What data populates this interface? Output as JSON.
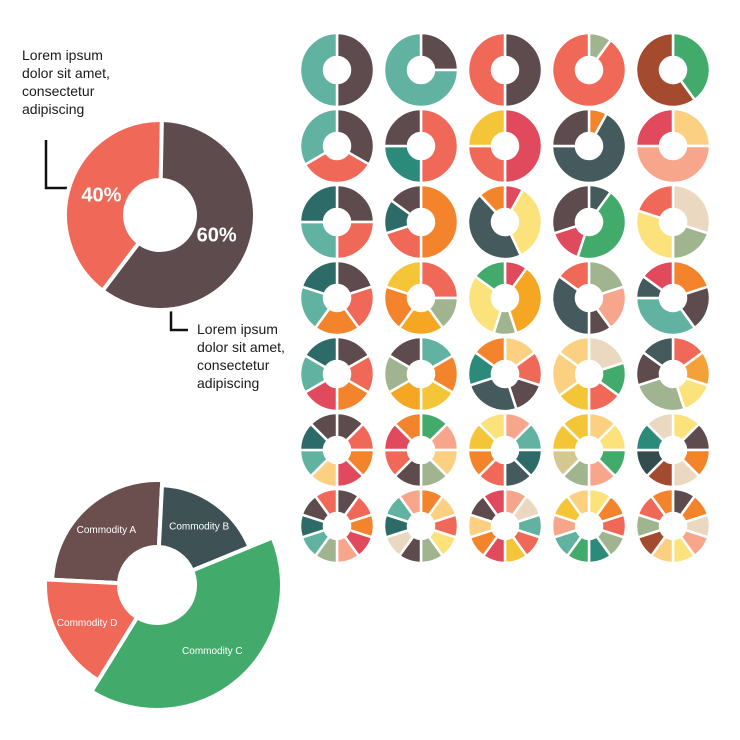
{
  "palette": [
    "#61b2a0",
    "#5e4b4e",
    "#f06858",
    "#a34a2f",
    "#42ab6c",
    "#f4c537",
    "#e04a5c",
    "#f3842c",
    "#a0b58f",
    "#344c4c",
    "#2c6b68",
    "#fbd080",
    "#f7a58b",
    "#ead9c0",
    "#fbe27a",
    "#445a5c"
  ],
  "callouts": [
    {
      "text": "Lorem ipsum dolor sit amet, consectetur adipiscing"
    },
    {
      "text": "Lorem ipsum dolor sit amet, consectetur adipiscing"
    }
  ],
  "chart_data": [
    {
      "type": "pie",
      "variant": "donut",
      "title": "",
      "series": [
        {
          "label": "40%",
          "value": 40,
          "color": "#f06858"
        },
        {
          "label": "60%",
          "value": 60,
          "color": "#5e4b4e"
        }
      ]
    },
    {
      "type": "pie",
      "variant": "donut",
      "title": "",
      "series": [
        {
          "label": "Commodity A",
          "value": 25,
          "color": "#6b4f4f"
        },
        {
          "label": "Commodity B",
          "value": 18,
          "color": "#3e5155"
        },
        {
          "label": "Commodity C",
          "value": 40,
          "color": "#42ab6c"
        },
        {
          "label": "Commodity D",
          "value": 17,
          "color": "#f06858"
        }
      ]
    },
    {
      "type": "pie",
      "variant": "donut-icon-grid",
      "rows": [
        [
          {
            "values": [
              50,
              50
            ],
            "colors": [
              "#5e4b4e",
              "#61b2a0"
            ]
          },
          {
            "values": [
              25,
              75
            ],
            "colors": [
              "#5e4b4e",
              "#61b2a0"
            ]
          },
          {
            "values": [
              50,
              50
            ],
            "colors": [
              "#5e4b4e",
              "#f06858"
            ]
          },
          {
            "values": [
              10,
              90
            ],
            "colors": [
              "#a0b58f",
              "#f06858"
            ]
          },
          {
            "values": [
              40,
              60
            ],
            "colors": [
              "#42ab6c",
              "#a34a2f"
            ]
          }
        ],
        [
          {
            "values": [
              33.3,
              33.3,
              33.4
            ],
            "colors": [
              "#5e4b4e",
              "#f06858",
              "#61b2a0"
            ]
          },
          {
            "values": [
              50,
              25,
              25
            ],
            "colors": [
              "#f06858",
              "#2c8a7a",
              "#5e4b4e"
            ]
          },
          {
            "values": [
              50,
              25,
              25
            ],
            "colors": [
              "#e04a5c",
              "#f06858",
              "#f4c537"
            ]
          },
          {
            "values": [
              8,
              67,
              25
            ],
            "colors": [
              "#f3842c",
              "#445a5c",
              "#5e4b4e"
            ]
          },
          {
            "values": [
              25,
              50,
              25
            ],
            "colors": [
              "#fbd080",
              "#f7a58b",
              "#e04a5c"
            ]
          }
        ],
        [
          {
            "values": [
              25,
              25,
              25,
              25
            ],
            "colors": [
              "#5e4b4e",
              "#f06858",
              "#61b2a0",
              "#2c6b68"
            ]
          },
          {
            "values": [
              50,
              20,
              15,
              15
            ],
            "colors": [
              "#f3842c",
              "#f06858",
              "#2c6b68",
              "#5e4b4e"
            ]
          },
          {
            "values": [
              8,
              35,
              45,
              12
            ],
            "colors": [
              "#e04a5c",
              "#fbe27a",
              "#445a5c",
              "#f3842c"
            ]
          },
          {
            "values": [
              10,
              45,
              15,
              30
            ],
            "colors": [
              "#445a5c",
              "#42ab6c",
              "#e04a5c",
              "#5e4b4e"
            ]
          },
          {
            "values": [
              30,
              20,
              30,
              20
            ],
            "colors": [
              "#ead9c0",
              "#a0b58f",
              "#fbe27a",
              "#f06858"
            ]
          }
        ],
        [
          {
            "values": [
              20,
              20,
              20,
              20,
              20
            ],
            "colors": [
              "#5e4b4e",
              "#f06858",
              "#f3842c",
              "#61b2a0",
              "#2c6b68"
            ]
          },
          {
            "values": [
              25,
              15,
              20,
              20,
              20
            ],
            "colors": [
              "#f06858",
              "#a0b58f",
              "#f5a623",
              "#f3842c",
              "#f4c537"
            ]
          },
          {
            "values": [
              10,
              35,
              10,
              30,
              15
            ],
            "colors": [
              "#e04a5c",
              "#f5a623",
              "#a0b58f",
              "#fbe27a",
              "#42ab6c"
            ]
          },
          {
            "values": [
              20,
              20,
              10,
              35,
              15
            ],
            "colors": [
              "#a0b58f",
              "#f7a58b",
              "#5e4b4e",
              "#445a5c",
              "#f06858"
            ]
          },
          {
            "values": [
              20,
              20,
              35,
              10,
              15
            ],
            "colors": [
              "#f3842c",
              "#5e4b4e",
              "#61b2a0",
              "#445a5c",
              "#e04a5c"
            ]
          }
        ],
        [
          {
            "values": [
              16.7,
              16.7,
              16.6,
              16.7,
              16.7,
              16.6
            ],
            "colors": [
              "#5e4b4e",
              "#f06858",
              "#f3842c",
              "#e04a5c",
              "#61b2a0",
              "#2c6b68"
            ]
          },
          {
            "values": [
              16.7,
              16.7,
              16.6,
              16.7,
              16.7,
              16.6
            ],
            "colors": [
              "#61b2a0",
              "#f3842c",
              "#f4c537",
              "#f5a623",
              "#a0b58f",
              "#5e4b4e"
            ]
          },
          {
            "values": [
              15,
              15,
              15,
              25,
              15,
              15
            ],
            "colors": [
              "#fbd080",
              "#f06858",
              "#5e4b4e",
              "#445a5c",
              "#2c8a7a",
              "#f3842c"
            ]
          },
          {
            "values": [
              20,
              15,
              15,
              15,
              20,
              15
            ],
            "colors": [
              "#ead9c0",
              "#42ab6c",
              "#f06858",
              "#f4c537",
              "#fbd080",
              "#fbd080"
            ]
          },
          {
            "values": [
              15,
              15,
              15,
              25,
              15,
              15
            ],
            "colors": [
              "#f06858",
              "#f4a13a",
              "#fbe27a",
              "#a0b58f",
              "#5e4b4e",
              "#445a5c"
            ]
          }
        ],
        [
          {
            "values": [
              12.5,
              12.5,
              12.5,
              12.5,
              12.5,
              12.5,
              12.5,
              12.5
            ],
            "colors": [
              "#5e4b4e",
              "#f06858",
              "#f3842c",
              "#e04a5c",
              "#fbd080",
              "#61b2a0",
              "#2c6b68",
              "#5e4b4e"
            ]
          },
          {
            "values": [
              12.5,
              12.5,
              12.5,
              12.5,
              12.5,
              12.5,
              12.5,
              12.5
            ],
            "colors": [
              "#42ab6c",
              "#f7a58b",
              "#fbd080",
              "#a0b58f",
              "#5e4b4e",
              "#f06858",
              "#e04a5c",
              "#f3842c"
            ]
          },
          {
            "values": [
              12.5,
              12.5,
              12.5,
              12.5,
              12.5,
              12.5,
              12.5,
              12.5
            ],
            "colors": [
              "#f7a58b",
              "#61b2a0",
              "#2c6b68",
              "#445a5c",
              "#f06858",
              "#f3842c",
              "#f4c537",
              "#fbe27a"
            ]
          },
          {
            "values": [
              12.5,
              12.5,
              12.5,
              12.5,
              12.5,
              12.5,
              12.5,
              12.5
            ],
            "colors": [
              "#fbd080",
              "#fbe27a",
              "#42ab6c",
              "#f7a58b",
              "#a0b58f",
              "#d4c890",
              "#f4c537",
              "#f4c537"
            ]
          },
          {
            "values": [
              12.5,
              12.5,
              12.5,
              12.5,
              12.5,
              12.5,
              12.5,
              12.5
            ],
            "colors": [
              "#fbe27a",
              "#5e4b4e",
              "#f3842c",
              "#ead9c0",
              "#a34a2f",
              "#344c4c",
              "#2c8a7a",
              "#ead9c0"
            ]
          }
        ],
        [
          {
            "values": [
              10,
              10,
              10,
              10,
              10,
              10,
              10,
              10,
              10,
              10
            ],
            "colors": [
              "#5e4b4e",
              "#f06858",
              "#f3842c",
              "#e04a5c",
              "#f7a58b",
              "#a0b58f",
              "#61b2a0",
              "#2c6b68",
              "#5e4b4e",
              "#f06858"
            ]
          },
          {
            "values": [
              10,
              10,
              10,
              10,
              10,
              10,
              10,
              10,
              10,
              10
            ],
            "colors": [
              "#f3842c",
              "#fbd080",
              "#f06858",
              "#fbe27a",
              "#a0b58f",
              "#5e4b4e",
              "#ead9c0",
              "#2c6b68",
              "#61b2a0",
              "#f7a58b"
            ]
          },
          {
            "values": [
              10,
              10,
              10,
              10,
              10,
              10,
              10,
              10,
              10,
              10
            ],
            "colors": [
              "#f7a58b",
              "#ead9c0",
              "#61b2a0",
              "#f06858",
              "#f4c537",
              "#e04a5c",
              "#f3842c",
              "#fbd080",
              "#5e4b4e",
              "#e04a5c"
            ]
          },
          {
            "values": [
              10,
              10,
              10,
              10,
              10,
              10,
              10,
              10,
              10,
              10
            ],
            "colors": [
              "#fbe27a",
              "#f3842c",
              "#f06858",
              "#a0b58f",
              "#2c8a7a",
              "#42ab6c",
              "#61b2a0",
              "#f7a58b",
              "#f4c537",
              "#fbd080"
            ]
          },
          {
            "values": [
              10,
              10,
              10,
              10,
              10,
              10,
              10,
              10,
              10,
              10
            ],
            "colors": [
              "#5e4b4e",
              "#f3842c",
              "#ead9c0",
              "#f7a58b",
              "#fbe27a",
              "#fbd080",
              "#a34a2f",
              "#a0b58f",
              "#f06858",
              "#f3842c"
            ]
          }
        ]
      ]
    }
  ]
}
